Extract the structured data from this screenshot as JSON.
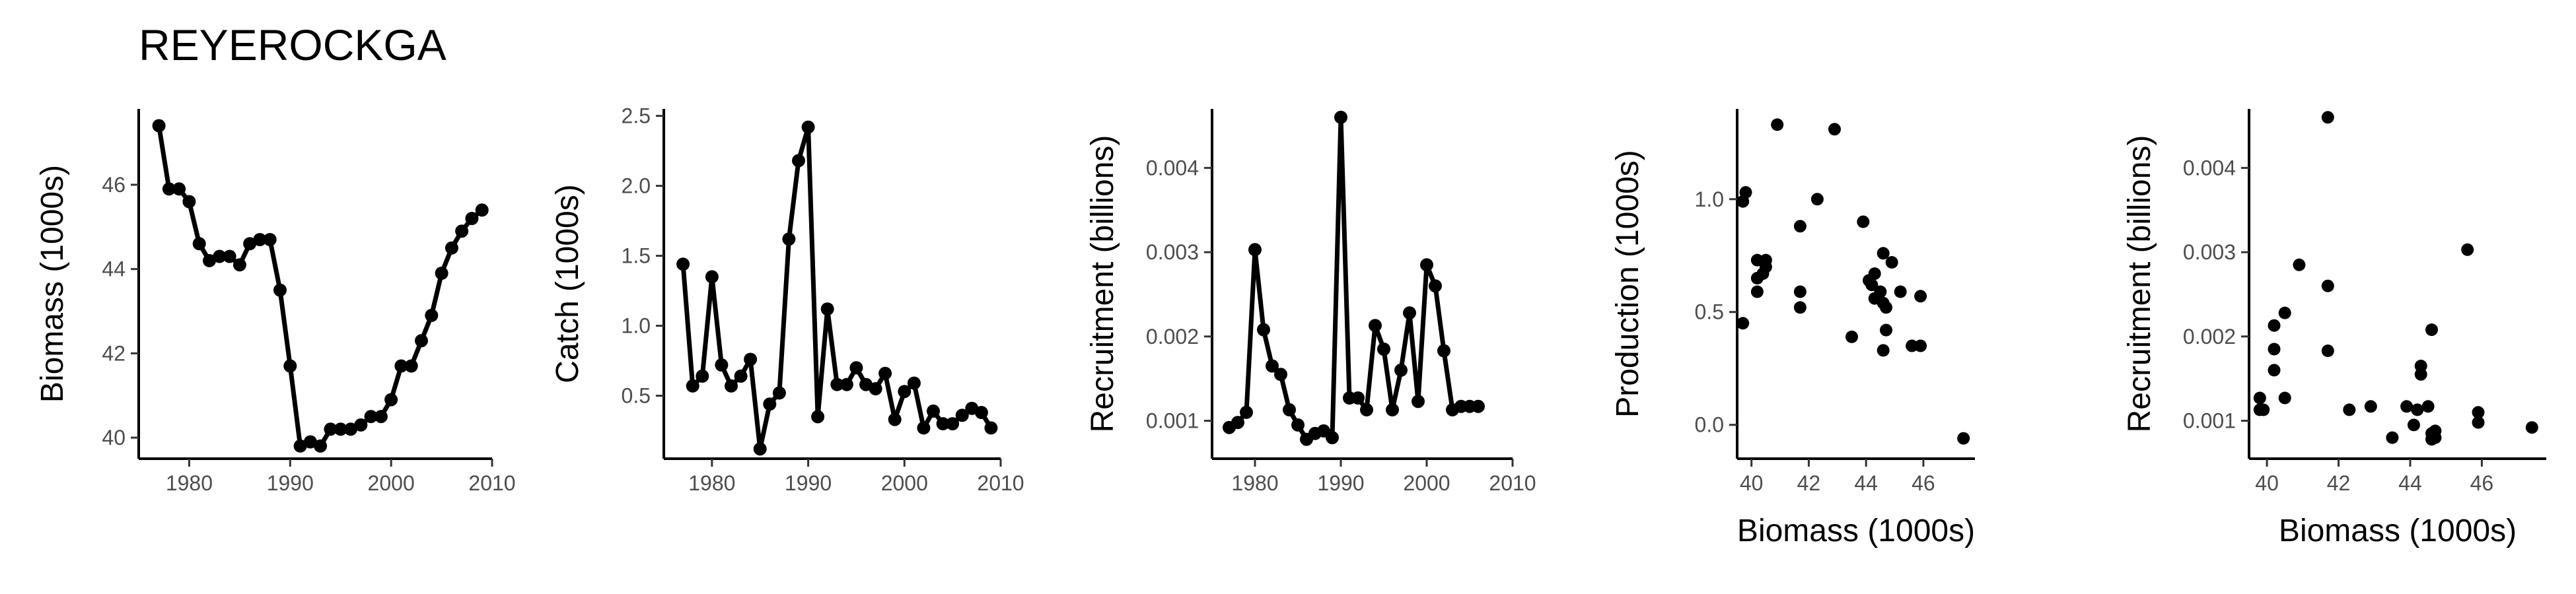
{
  "title": "REYEROCKGA",
  "chart_data": [
    {
      "type": "line",
      "xlabel": "",
      "ylabel": "Biomass (1000s)",
      "xlim": [
        1975,
        2010
      ],
      "ylim": [
        39.5,
        47.8
      ],
      "xticks": [
        1980,
        1990,
        2000,
        2010
      ],
      "yticks": [
        40,
        42,
        44,
        46
      ],
      "x": [
        1977,
        1978,
        1979,
        1980,
        1981,
        1982,
        1983,
        1984,
        1985,
        1986,
        1987,
        1988,
        1989,
        1990,
        1991,
        1992,
        1993,
        1994,
        1995,
        1996,
        1997,
        1998,
        1999,
        2000,
        2001,
        2002,
        2003,
        2004,
        2005,
        2006,
        2007,
        2008,
        2009
      ],
      "y": [
        47.4,
        45.9,
        45.9,
        45.6,
        44.6,
        44.2,
        44.3,
        44.3,
        44.1,
        44.6,
        44.7,
        44.7,
        43.5,
        41.7,
        39.8,
        39.9,
        39.8,
        40.2,
        40.2,
        40.2,
        40.3,
        40.5,
        40.5,
        40.9,
        41.7,
        41.7,
        42.3,
        42.9,
        43.9,
        44.5,
        44.9,
        45.2,
        45.4
      ]
    },
    {
      "type": "line",
      "xlabel": "",
      "ylabel": "Catch (1000s)",
      "xlim": [
        1975,
        2010
      ],
      "ylim": [
        0.05,
        2.55
      ],
      "xticks": [
        1980,
        1990,
        2000,
        2010
      ],
      "yticks": [
        0.5,
        1.0,
        1.5,
        2.0,
        2.5
      ],
      "ytick_labels": [
        "0.5",
        "1.0",
        "1.5",
        "2.0",
        "2.5"
      ],
      "x": [
        1977,
        1978,
        1979,
        1980,
        1981,
        1982,
        1983,
        1984,
        1985,
        1986,
        1987,
        1988,
        1989,
        1990,
        1991,
        1992,
        1993,
        1994,
        1995,
        1996,
        1997,
        1998,
        1999,
        2000,
        2001,
        2002,
        2003,
        2004,
        2005,
        2006,
        2007,
        2008,
        2009
      ],
      "y": [
        1.44,
        0.57,
        0.64,
        1.35,
        0.72,
        0.57,
        0.64,
        0.76,
        0.12,
        0.44,
        0.52,
        1.62,
        2.18,
        2.42,
        0.35,
        1.12,
        0.58,
        0.58,
        0.7,
        0.58,
        0.55,
        0.66,
        0.33,
        0.53,
        0.59,
        0.27,
        0.39,
        0.3,
        0.3,
        0.36,
        0.41,
        0.38,
        0.27
      ]
    },
    {
      "type": "line",
      "xlabel": "",
      "ylabel": "Recruitment (billions)",
      "xlim": [
        1975,
        2010
      ],
      "ylim": [
        0.00055,
        0.0047
      ],
      "xticks": [
        1980,
        1990,
        2000,
        2010
      ],
      "yticks": [
        0.001,
        0.002,
        0.003,
        0.004
      ],
      "ytick_labels": [
        "0.001",
        "0.002",
        "0.003",
        "0.004"
      ],
      "x": [
        1977,
        1978,
        1979,
        1980,
        1981,
        1982,
        1983,
        1984,
        1985,
        1986,
        1987,
        1988,
        1989,
        1990,
        1991,
        1992,
        1993,
        1994,
        1995,
        1996,
        1997,
        1998,
        1999,
        2000,
        2001,
        2002,
        2003,
        2004,
        2005,
        2006
      ],
      "y": [
        0.00092,
        0.00098,
        0.0011,
        0.00303,
        0.00208,
        0.00165,
        0.00155,
        0.00113,
        0.00095,
        0.00078,
        0.00085,
        0.00088,
        0.0008,
        0.0046,
        0.00127,
        0.00127,
        0.00113,
        0.00213,
        0.00185,
        0.00113,
        0.0016,
        0.00228,
        0.00123,
        0.00285,
        0.0026,
        0.00183,
        0.00113,
        0.00117,
        0.00117,
        0.00117
      ]
    },
    {
      "type": "scatter",
      "xlabel": "Biomass (1000s)",
      "ylabel": "Production (1000s)",
      "xlim": [
        39.5,
        47.8
      ],
      "ylim": [
        -0.15,
        1.4
      ],
      "xticks": [
        40,
        42,
        44,
        46
      ],
      "yticks": [
        0.0,
        0.5,
        1.0
      ],
      "ytick_labels": [
        "0.0",
        "0.5",
        "1.0"
      ],
      "x": [
        40.9,
        42.9,
        39.7,
        39.8,
        42.3,
        41.7,
        43.9,
        39.7,
        40.2,
        40.5,
        40.4,
        40.2,
        40.5,
        40.2,
        41.7,
        41.7,
        44.6,
        44.1,
        44.9,
        44.2,
        44.3,
        44.3,
        44.6,
        44.5,
        44.7,
        45.2,
        44.7,
        45.6,
        45.9,
        45.9,
        43.5,
        44.6,
        47.4
      ],
      "y": [
        1.33,
        1.31,
        0.99,
        1.03,
        1.0,
        0.88,
        0.9,
        0.45,
        0.73,
        0.73,
        0.67,
        0.65,
        0.7,
        0.59,
        0.59,
        0.52,
        0.76,
        0.64,
        0.72,
        0.62,
        0.67,
        0.56,
        0.54,
        0.59,
        0.52,
        0.59,
        0.42,
        0.35,
        0.57,
        0.35,
        0.39,
        0.33,
        -0.06
      ]
    },
    {
      "type": "scatter",
      "xlabel": "Biomass (1000s)",
      "ylabel": "Recruitment (billions)",
      "xlim": [
        39.5,
        47.8
      ],
      "ylim": [
        0.00055,
        0.0047
      ],
      "xticks": [
        40,
        42,
        44,
        46
      ],
      "yticks": [
        0.001,
        0.002,
        0.003,
        0.004
      ],
      "ytick_labels": [
        "0.001",
        "0.002",
        "0.003",
        "0.004"
      ],
      "x": [
        41.7,
        45.6,
        41.7,
        40.9,
        40.5,
        44.6,
        40.2,
        40.2,
        41.7,
        44.3,
        44.3,
        39.8,
        40.5,
        39.9,
        40.2,
        39.8,
        42.3,
        42.9,
        43.9,
        44.5,
        44.1,
        44.7,
        44.6,
        45.9,
        45.9,
        47.4,
        44.7,
        44.2,
        44.6,
        43.5
      ],
      "y": [
        0.0046,
        0.00303,
        0.0026,
        0.00285,
        0.00228,
        0.00208,
        0.00213,
        0.00185,
        0.00183,
        0.00165,
        0.00155,
        0.00127,
        0.00127,
        0.00113,
        0.0016,
        0.00113,
        0.00113,
        0.00117,
        0.00117,
        0.00117,
        0.00095,
        0.00088,
        0.00078,
        0.0011,
        0.00098,
        0.00092,
        0.0008,
        0.00113,
        0.00085,
        0.0008
      ]
    }
  ]
}
